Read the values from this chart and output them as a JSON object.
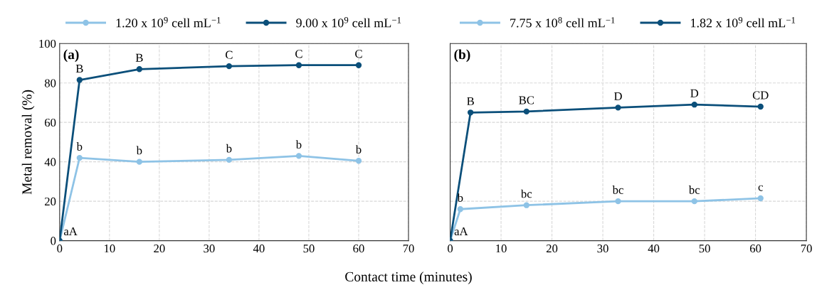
{
  "chart_data": [
    {
      "type": "line",
      "ylabel": "Metal removal (%)",
      "xlabel": "Contact time (minutes)",
      "xlim": [
        0,
        70
      ],
      "xticks": [
        0,
        10,
        20,
        30,
        40,
        50,
        60,
        70
      ],
      "ylim": [
        0,
        100
      ],
      "yticks": [
        0,
        20,
        40,
        60,
        80,
        100
      ],
      "grid": true,
      "legend": "top",
      "marker": "circle",
      "line_style": "solid",
      "series": [
        {
          "name": "1.20 x 10$^{9}$ cell mL$^{−1}$",
          "color": "#8ec3e6",
          "x": [
            0,
            4,
            16,
            34,
            48,
            60
          ],
          "values": [
            0,
            42,
            40,
            41,
            43,
            40.5
          ]
        },
        {
          "name": "9.00 x 10$^{9}$ cell mL$^{−1}$",
          "color": "#0b4f7a",
          "x": [
            0,
            4,
            16,
            34,
            48,
            60
          ],
          "values": [
            0,
            81.5,
            87,
            88.5,
            89,
            89
          ]
        }
      ],
      "annotations": [
        "(a)",
        {
          "text": "aA",
          "x": 0,
          "y": 0
        },
        {
          "text": "b",
          "x": 4,
          "y": 42
        },
        {
          "text": "b",
          "x": 16,
          "y": 40
        },
        {
          "text": "b",
          "x": 34,
          "y": 41
        },
        {
          "text": "b",
          "x": 48,
          "y": 43
        },
        {
          "text": "b",
          "x": 60,
          "y": 40.5
        },
        {
          "text": "B",
          "x": 4,
          "y": 81.5
        },
        {
          "text": "B",
          "x": 16,
          "y": 87
        },
        {
          "text": "C",
          "x": 34,
          "y": 88.5
        },
        {
          "text": "C",
          "x": 48,
          "y": 89
        },
        {
          "text": "C",
          "x": 60,
          "y": 89
        }
      ]
    },
    {
      "type": "line",
      "xlim": [
        0,
        70
      ],
      "xticks": [
        0,
        10,
        20,
        30,
        40,
        50,
        60,
        70
      ],
      "ylim": [
        0,
        100
      ],
      "yticks": [
        0,
        20,
        40,
        60,
        80,
        100
      ],
      "tick_labels": "x",
      "grid": true,
      "legend": "top",
      "marker": "circle",
      "line_style": "solid",
      "series": [
        {
          "name": "7.75 x 10$^{8}$ cell mL$^{−1}$",
          "color": "#8ec3e6",
          "x": [
            0,
            2,
            15,
            33,
            48,
            61
          ],
          "values": [
            0,
            16,
            18,
            20,
            20,
            21.5
          ]
        },
        {
          "name": "1.82 x 10$^{9}$ cell mL$^{−1}$",
          "color": "#0b4f7a",
          "x": [
            0,
            4,
            15,
            33,
            48,
            61
          ],
          "values": [
            0,
            65,
            65.5,
            67.5,
            69,
            68
          ]
        }
      ],
      "annotations": [
        "(b)",
        {
          "text": "aA",
          "x": 0,
          "y": 0
        },
        {
          "text": "b",
          "x": 2,
          "y": 16
        },
        {
          "text": "bc",
          "x": 15,
          "y": 18
        },
        {
          "text": "bc",
          "x": 33,
          "y": 20
        },
        {
          "text": "bc",
          "x": 48,
          "y": 20
        },
        {
          "text": "c",
          "x": 61,
          "y": 21.5
        },
        {
          "text": "B",
          "x": 4,
          "y": 65
        },
        {
          "text": "BC",
          "x": 15,
          "y": 65.5
        },
        {
          "text": "D",
          "x": 33,
          "y": 67.5
        },
        {
          "text": "D",
          "x": 48,
          "y": 69
        },
        {
          "text": "CD",
          "x": 61,
          "y": 68
        }
      ]
    }
  ]
}
